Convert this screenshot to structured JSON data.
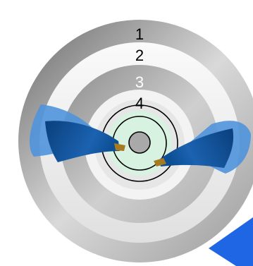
{
  "rings": [
    {
      "label": "1",
      "label_color": "#000000"
    },
    {
      "label": "2",
      "label_color": "#000000"
    },
    {
      "label": "3",
      "label_color": "#ffffff"
    },
    {
      "label": "4",
      "label_color": "#000000"
    }
  ],
  "colors": {
    "ring_dark": "#7a7a7a",
    "ring_light": "#efefef",
    "hub_fill": "#d8f2e2",
    "core": "#a9a9a9",
    "blade_dark": "#0d4f95",
    "blade_light": "#4f93dc",
    "accent": "#1f66e5",
    "tip": "#a67a1f"
  }
}
